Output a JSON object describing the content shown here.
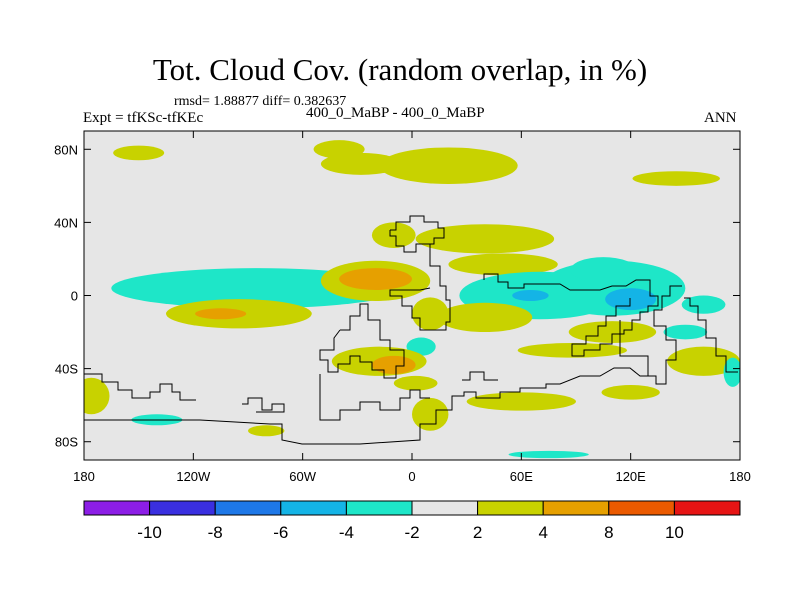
{
  "header": {
    "title": "Tot. Cloud Cov. (random overlap, in %)",
    "stats": "rmsd= 1.88877 diff= 0.382637",
    "expt": "Expt = tfKSc-tfKEc",
    "subtitle": "400_0_MaBP - 400_0_MaBP",
    "season": "ANN"
  },
  "chart_data": {
    "type": "heatmap",
    "title": "Tot. Cloud Cov. (random overlap, in %)",
    "xlabel": "",
    "ylabel": "",
    "xlim": [
      -180,
      180
    ],
    "ylim": [
      -90,
      90
    ],
    "x_ticks": [
      {
        "value": -180,
        "label": "180"
      },
      {
        "value": -120,
        "label": "120W"
      },
      {
        "value": -60,
        "label": "60W"
      },
      {
        "value": 0,
        "label": "0"
      },
      {
        "value": 60,
        "label": "60E"
      },
      {
        "value": 120,
        "label": "120E"
      },
      {
        "value": 180,
        "label": "180"
      }
    ],
    "y_ticks": [
      {
        "value": 80,
        "label": "80N"
      },
      {
        "value": 40,
        "label": "40N"
      },
      {
        "value": 0,
        "label": "0"
      },
      {
        "value": -40,
        "label": "40S"
      },
      {
        "value": -80,
        "label": "80S"
      }
    ],
    "background_color": "#e6e6e6",
    "colorbar": {
      "colors": [
        "#8c1ee6",
        "#3a2fe0",
        "#1e78e8",
        "#14b4e6",
        "#1ee6c8",
        "#e6e6e6",
        "#c8d200",
        "#e6a000",
        "#eb5a00",
        "#e61414"
      ],
      "boundaries": [
        -10,
        -8,
        -6,
        -4,
        -2,
        2,
        4,
        8,
        10
      ],
      "labels": [
        "-10",
        "-8",
        "-6",
        "-4",
        "-2",
        "2",
        "4",
        "8",
        "10"
      ]
    },
    "anomalies": [
      {
        "lon": -85,
        "lat": 4,
        "rlon": 80,
        "rlat": 11,
        "value": -3
      },
      {
        "lon": -95,
        "lat": -10,
        "rlon": 40,
        "rlat": 8,
        "value": 3
      },
      {
        "lon": -105,
        "lat": -10,
        "rlon": 14,
        "rlat": 3,
        "value": 5
      },
      {
        "lon": -150,
        "lat": 78,
        "rlon": 14,
        "rlat": 4,
        "value": 3
      },
      {
        "lon": -40,
        "lat": 80,
        "rlon": 14,
        "rlat": 5,
        "value": 3
      },
      {
        "lon": -28,
        "lat": 72,
        "rlon": 22,
        "rlat": 6,
        "value": 3
      },
      {
        "lon": 20,
        "lat": 71,
        "rlon": 38,
        "rlat": 10,
        "value": 3
      },
      {
        "lon": 145,
        "lat": 64,
        "rlon": 24,
        "rlat": 4,
        "value": 3
      },
      {
        "lon": -20,
        "lat": 8,
        "rlon": 30,
        "rlat": 11,
        "value": 3
      },
      {
        "lon": -20,
        "lat": 9,
        "rlon": 20,
        "rlat": 6,
        "value": 5
      },
      {
        "lon": -10,
        "lat": 33,
        "rlon": 12,
        "rlat": 7,
        "value": 3
      },
      {
        "lon": 40,
        "lat": 31,
        "rlon": 38,
        "rlat": 8,
        "value": 3
      },
      {
        "lon": 50,
        "lat": 17,
        "rlon": 30,
        "rlat": 6,
        "value": 3
      },
      {
        "lon": 10,
        "lat": -10,
        "rlon": 10,
        "rlat": 9,
        "value": 3
      },
      {
        "lon": 5,
        "lat": -28,
        "rlon": 8,
        "rlat": 5,
        "value": -3
      },
      {
        "lon": -18,
        "lat": -36,
        "rlon": 26,
        "rlat": 8,
        "value": 3
      },
      {
        "lon": -10,
        "lat": -38,
        "rlon": 12,
        "rlat": 5,
        "value": 5
      },
      {
        "lon": 2,
        "lat": -48,
        "rlon": 12,
        "rlat": 4,
        "value": 3
      },
      {
        "lon": 10,
        "lat": -65,
        "rlon": 10,
        "rlat": 9,
        "value": 3
      },
      {
        "lon": 60,
        "lat": -58,
        "rlon": 30,
        "rlat": 5,
        "value": 3
      },
      {
        "lon": 120,
        "lat": -53,
        "rlon": 16,
        "rlat": 4,
        "value": 3
      },
      {
        "lon": 160,
        "lat": -36,
        "rlon": 20,
        "rlat": 8,
        "value": 3
      },
      {
        "lon": 88,
        "lat": -30,
        "rlon": 30,
        "rlat": 4,
        "value": 3
      },
      {
        "lon": -176,
        "lat": -55,
        "rlon": 10,
        "rlat": 10,
        "value": 3
      },
      {
        "lon": -140,
        "lat": -68,
        "rlon": 14,
        "rlat": 3,
        "value": -3
      },
      {
        "lon": -80,
        "lat": -74,
        "rlon": 10,
        "rlat": 3,
        "value": 3
      },
      {
        "lon": 75,
        "lat": -87,
        "rlon": 22,
        "rlat": 2,
        "value": -3
      },
      {
        "lon": 110,
        "lat": 4,
        "rlon": 40,
        "rlat": 15,
        "value": -3
      },
      {
        "lon": 70,
        "lat": 0,
        "rlon": 44,
        "rlat": 13,
        "value": -3
      },
      {
        "lon": 105,
        "lat": 14,
        "rlon": 18,
        "rlat": 7,
        "value": -3
      },
      {
        "lon": 120,
        "lat": -2,
        "rlon": 14,
        "rlat": 6,
        "value": -5
      },
      {
        "lon": 65,
        "lat": 0,
        "rlon": 10,
        "rlat": 3,
        "value": -5
      },
      {
        "lon": 160,
        "lat": -5,
        "rlon": 12,
        "rlat": 5,
        "value": -3
      },
      {
        "lon": 150,
        "lat": -20,
        "rlon": 12,
        "rlat": 4,
        "value": -3
      },
      {
        "lon": 176,
        "lat": -42,
        "rlon": 5,
        "rlat": 8,
        "value": -3
      },
      {
        "lon": 110,
        "lat": -20,
        "rlon": 24,
        "rlat": 6,
        "value": 3
      },
      {
        "lon": 40,
        "lat": -12,
        "rlon": 26,
        "rlat": 8,
        "value": 3
      }
    ]
  }
}
